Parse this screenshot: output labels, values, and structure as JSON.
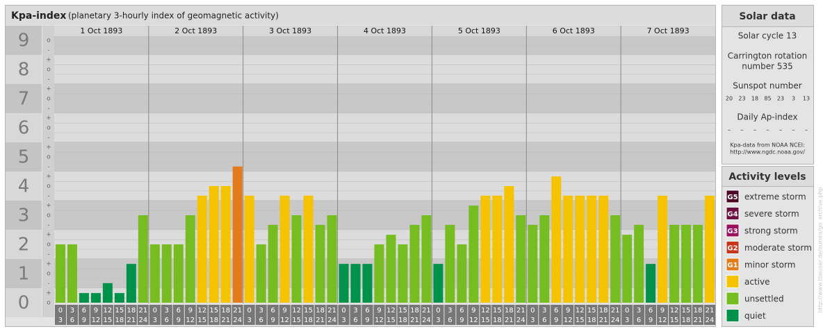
{
  "chart_data": {
    "type": "bar",
    "title": "Kpa-index",
    "subtitle": "(planetary 3-hourly index of geomagnetic activity)",
    "ylim": [
      -0.5,
      9.5
    ],
    "yticks": [
      0,
      1,
      2,
      3,
      4,
      5,
      6,
      7,
      8,
      9
    ],
    "minor_yticks": [
      {
        "value": 0,
        "label": "o"
      },
      {
        "value": 0.33,
        "label": "+"
      },
      {
        "value": 0.67,
        "label": "-"
      },
      {
        "value": 1,
        "label": "o"
      },
      {
        "value": 1.33,
        "label": "+"
      },
      {
        "value": 1.67,
        "label": "-"
      },
      {
        "value": 2,
        "label": "o"
      },
      {
        "value": 2.33,
        "label": "+"
      },
      {
        "value": 2.67,
        "label": "-"
      },
      {
        "value": 3,
        "label": "o"
      },
      {
        "value": 3.33,
        "label": "+"
      },
      {
        "value": 3.67,
        "label": "-"
      },
      {
        "value": 4,
        "label": "o"
      },
      {
        "value": 4.33,
        "label": "+"
      },
      {
        "value": 4.67,
        "label": "-"
      },
      {
        "value": 5,
        "label": "o"
      },
      {
        "value": 5.33,
        "label": "+"
      },
      {
        "value": 5.67,
        "label": "-"
      },
      {
        "value": 6,
        "label": "o"
      },
      {
        "value": 6.33,
        "label": "+"
      },
      {
        "value": 6.67,
        "label": "-"
      },
      {
        "value": 7,
        "label": "o"
      },
      {
        "value": 7.33,
        "label": "+"
      },
      {
        "value": 7.67,
        "label": "-"
      },
      {
        "value": 8,
        "label": "o"
      },
      {
        "value": 8.33,
        "label": "+"
      },
      {
        "value": 8.67,
        "label": "-"
      },
      {
        "value": 9,
        "label": "o"
      }
    ],
    "intervals": [
      [
        "0",
        "3"
      ],
      [
        "3",
        "6"
      ],
      [
        "6",
        "9"
      ],
      [
        "9",
        "12"
      ],
      [
        "12",
        "15"
      ],
      [
        "15",
        "18"
      ],
      [
        "18",
        "21"
      ],
      [
        "21",
        "24"
      ]
    ],
    "days": [
      {
        "date": "1 Oct 1893",
        "values": [
          2,
          2,
          0.33,
          0.33,
          0.67,
          0.33,
          1.33,
          3
        ],
        "colors": [
          "#76bd22",
          "#76bd22",
          "#00924a",
          "#00924a",
          "#00924a",
          "#00924a",
          "#00924a",
          "#76bd22"
        ]
      },
      {
        "date": "2 Oct 1893",
        "values": [
          2,
          2,
          2,
          3,
          3.67,
          4,
          4,
          4.67
        ],
        "colors": [
          "#76bd22",
          "#76bd22",
          "#76bd22",
          "#76bd22",
          "#f5c300",
          "#f5c300",
          "#f5c300",
          "#e37b1a"
        ]
      },
      {
        "date": "3 Oct 1893",
        "values": [
          3.67,
          2,
          2.67,
          3.67,
          3,
          3.67,
          2.67,
          3
        ],
        "colors": [
          "#f5c300",
          "#76bd22",
          "#76bd22",
          "#f5c300",
          "#76bd22",
          "#f5c300",
          "#76bd22",
          "#76bd22"
        ]
      },
      {
        "date": "4 Oct 1893",
        "values": [
          1.33,
          1.33,
          1.33,
          2,
          2.33,
          2,
          2.67,
          3
        ],
        "colors": [
          "#00924a",
          "#00924a",
          "#00924a",
          "#76bd22",
          "#76bd22",
          "#76bd22",
          "#76bd22",
          "#76bd22"
        ]
      },
      {
        "date": "5 Oct 1893",
        "values": [
          1.33,
          2.67,
          2,
          3.33,
          3.67,
          3.67,
          4,
          3
        ],
        "colors": [
          "#00924a",
          "#76bd22",
          "#76bd22",
          "#76bd22",
          "#f5c300",
          "#f5c300",
          "#f5c300",
          "#76bd22"
        ]
      },
      {
        "date": "6 Oct 1893",
        "values": [
          2.67,
          3,
          4.33,
          3.67,
          3.67,
          3.67,
          3.67,
          3
        ],
        "colors": [
          "#76bd22",
          "#76bd22",
          "#f5c300",
          "#f5c300",
          "#f5c300",
          "#f5c300",
          "#f5c300",
          "#76bd22"
        ]
      },
      {
        "date": "7 Oct 1893",
        "values": [
          2.33,
          2.67,
          1.33,
          3.67,
          2.67,
          2.67,
          2.67,
          3.67
        ],
        "colors": [
          "#76bd22",
          "#76bd22",
          "#00924a",
          "#f5c300",
          "#76bd22",
          "#76bd22",
          "#76bd22",
          "#f5c300"
        ]
      }
    ]
  },
  "solar_data": {
    "title": "Solar data",
    "solar_cycle": "Solar cycle 13",
    "carrington": [
      "Carrington rotation",
      "number 535"
    ],
    "sunspot_label": "Sunspot number",
    "sunspot_numbers": [
      20,
      23,
      18,
      85,
      23,
      3,
      13
    ],
    "ap_label": "Daily Ap-index",
    "ap_values": [
      "–",
      "–",
      "–",
      "–",
      "–",
      "–",
      "–"
    ],
    "source": [
      "Kpa-data from NOAA NCEI:",
      "http://www.ngdc.noaa.gov/"
    ]
  },
  "activity_levels": {
    "title": "Activity levels",
    "items": [
      {
        "code": "G5",
        "name": "extreme storm",
        "color": "#4d0a26"
      },
      {
        "code": "G4",
        "name": "severe storm",
        "color": "#6e0e3e"
      },
      {
        "code": "G3",
        "name": "strong storm",
        "color": "#9c0f5d"
      },
      {
        "code": "G2",
        "name": "moderate storm",
        "color": "#c7361b"
      },
      {
        "code": "G1",
        "name": "minor storm",
        "color": "#e37b1a"
      },
      {
        "name": "active",
        "color": "#f5c300"
      },
      {
        "name": "unsettled",
        "color": "#76bd22"
      },
      {
        "name": "quiet",
        "color": "#00924a"
      }
    ]
  },
  "watermark": "http://www.tbeuser.de/aurora/go_archive.php"
}
